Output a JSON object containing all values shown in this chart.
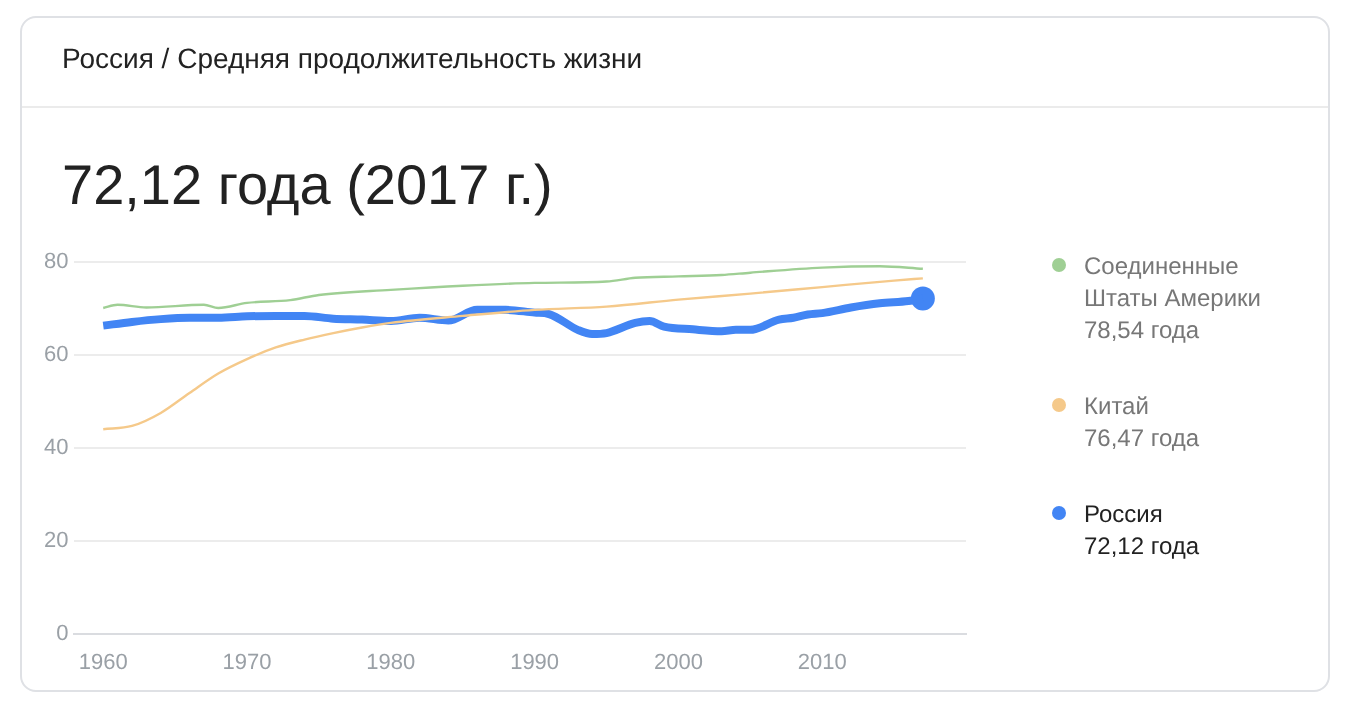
{
  "chart_data": {
    "type": "line",
    "subtitle": "Россия / Средняя продолжительность жизни",
    "title": "72,12 года (2017 г.)",
    "annotations": [
      "78,54 года",
      "76,47 года",
      "72,12 года"
    ],
    "xlim": [
      1958,
      2020
    ],
    "xticks": [
      1960,
      1970,
      1980,
      1990,
      2000,
      2010
    ],
    "ylim": [
      0,
      80
    ],
    "yticks": [
      0,
      20,
      40,
      60,
      80
    ],
    "grid": "y",
    "legend": "right",
    "marker": "none",
    "series": [
      {
        "name": "Соединенные Штаты Америки",
        "color": "#9fcf94",
        "x": [
          1960,
          1961,
          1963,
          1967,
          1968,
          1970,
          1973,
          1975,
          1980,
          1985,
          1990,
          1995,
          1997,
          2000,
          2003,
          2005,
          2010,
          2014,
          2017
        ],
        "values": [
          70.1,
          70.8,
          70.2,
          70.8,
          70.1,
          71.2,
          71.8,
          72.9,
          74.0,
          74.9,
          75.5,
          75.8,
          76.6,
          76.9,
          77.2,
          77.7,
          78.8,
          79.1,
          78.54
        ]
      },
      {
        "name": "Китай",
        "color": "#f5c98a",
        "x": [
          1960,
          1962,
          1964,
          1966,
          1968,
          1970,
          1972,
          1974,
          1976,
          1978,
          1980,
          1985,
          1990,
          1995,
          2000,
          2005,
          2010,
          2015,
          2017
        ],
        "values": [
          44.0,
          44.7,
          47.5,
          51.8,
          56.0,
          59.1,
          61.6,
          63.3,
          64.7,
          65.9,
          66.9,
          68.4,
          69.7,
          70.4,
          71.9,
          73.2,
          74.6,
          76.0,
          76.47
        ]
      },
      {
        "name": "Россия",
        "color": "#4285f4",
        "x": [
          1960,
          1962,
          1964,
          1966,
          1968,
          1970,
          1972,
          1974,
          1976,
          1978,
          1980,
          1982,
          1984,
          1986,
          1988,
          1990,
          1991,
          1993,
          1994,
          1995,
          1997,
          1998,
          1999,
          2001,
          2003,
          2004,
          2005,
          2007,
          2008,
          2009,
          2010,
          2012,
          2014,
          2016,
          2017
        ],
        "values": [
          66.3,
          67.1,
          67.7,
          68.0,
          68.0,
          68.3,
          68.4,
          68.4,
          67.8,
          67.6,
          67.3,
          68.0,
          67.4,
          69.7,
          69.7,
          69.1,
          68.8,
          65.4,
          64.5,
          64.7,
          66.9,
          67.3,
          66.1,
          65.5,
          65.1,
          65.4,
          65.4,
          67.6,
          68.0,
          68.7,
          69.0,
          70.2,
          71.1,
          71.6,
          72.12
        ]
      },
      {
        "type": "scatter",
        "color": "#4285f4",
        "marker": "circle",
        "x": [
          2017
        ],
        "values": [
          72.12
        ]
      }
    ]
  }
}
